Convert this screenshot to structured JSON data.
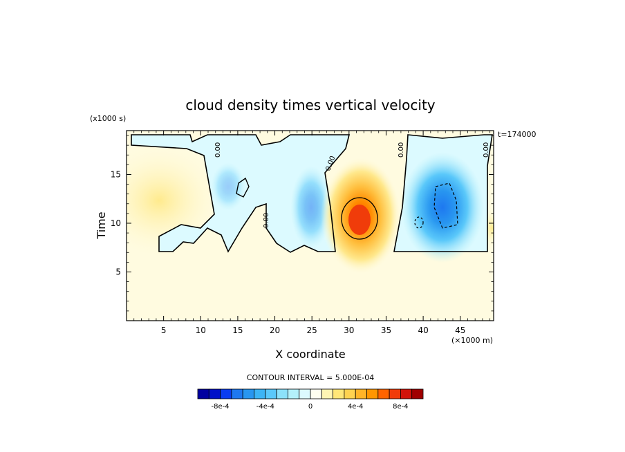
{
  "chart_data": {
    "type": "heatmap",
    "title": "cloud density times vertical velocity",
    "xlabel": "X coordinate",
    "ylabel": "Time",
    "x_unit": "(×1000 m)",
    "y_unit": "(x1000 s)",
    "time_stamp": "t=174000",
    "xlim": [
      0,
      49.5
    ],
    "ylim": [
      0,
      19.5
    ],
    "x_ticks": [
      5,
      10,
      15,
      20,
      25,
      30,
      35,
      40,
      45
    ],
    "y_ticks": [
      5,
      10,
      15
    ],
    "grid": false,
    "contour_interval_label": "CONTOUR INTERVAL = 5.000E-04",
    "zero_contour_label": "0.00",
    "colorbar": {
      "colors": [
        "#0000a0",
        "#0010c8",
        "#0a3cf0",
        "#1e78f0",
        "#2896f0",
        "#3cb4f5",
        "#5ac8fa",
        "#8ce1fa",
        "#b4f0fa",
        "#dcfaff",
        "#fffff0",
        "#fff5b4",
        "#ffe678",
        "#ffd250",
        "#ffb428",
        "#ff9600",
        "#ff6400",
        "#f03c0a",
        "#d2140a",
        "#a00000"
      ],
      "tick_labels": [
        "-8e-4",
        "-4e-4",
        "0",
        "4e-4",
        "8e-4"
      ],
      "tick_values": [
        -0.0008,
        -0.0004,
        0,
        0.0004,
        0.0008
      ]
    },
    "features": [
      {
        "kind": "updraft-max",
        "x": 31,
        "y": 10.5,
        "value": 0.00095
      },
      {
        "kind": "downdraft-min",
        "x": 43,
        "y": 11.5,
        "value": -0.0008
      },
      {
        "kind": "weak-positive",
        "x": 3,
        "y": 12,
        "value": 0.0002
      }
    ]
  }
}
